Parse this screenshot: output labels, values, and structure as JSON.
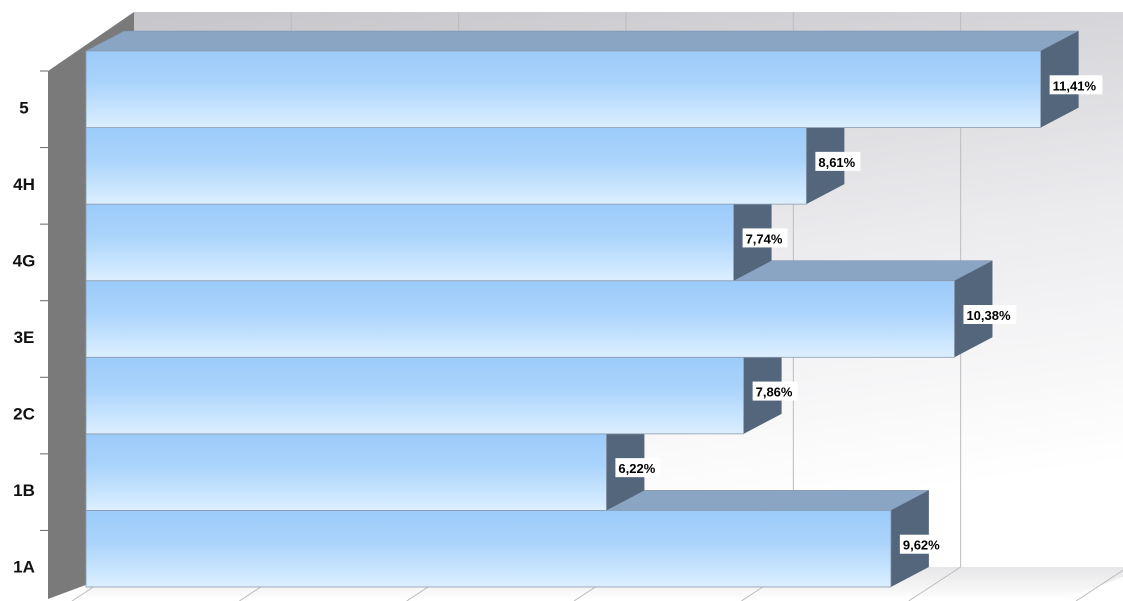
{
  "chart_data": {
    "type": "bar",
    "orientation": "horizontal",
    "style": "3d",
    "categories": [
      "1A",
      "1B",
      "2C",
      "3E",
      "4G",
      "4H",
      "5"
    ],
    "values": [
      9.62,
      6.22,
      7.86,
      10.38,
      7.74,
      8.61,
      11.41
    ],
    "value_labels": [
      "9,62%",
      "6,22%",
      "7,86%",
      "10,38%",
      "7,74%",
      "8,61%",
      "11,41%"
    ],
    "unit": "%",
    "xlim": [
      0,
      12
    ],
    "grid": true,
    "legend": "none",
    "colors": {
      "bar_light": "#d6ecff",
      "bar_mid": "#9fcdfb",
      "bar_top": "#8aa4c4",
      "bar_side": "#54667c",
      "wall": "#d2d2d6",
      "wall_side": "#7a7a7a",
      "grid": "#bcbcbc"
    }
  }
}
